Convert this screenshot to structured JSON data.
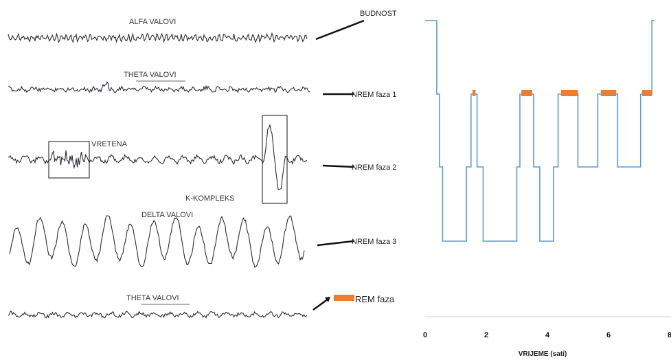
{
  "waves": [
    {
      "label": "ALFA VALOVI",
      "type": "alpha"
    },
    {
      "label": "THETA VALOVI",
      "type": "theta"
    },
    {
      "label": "VRETENA",
      "type": "spindle",
      "extra_label": "K-KOMPLEKS"
    },
    {
      "label": "DELTA VALOVI",
      "type": "delta"
    },
    {
      "label": "THETA VALOVI",
      "type": "theta"
    }
  ],
  "stages": [
    {
      "key": "wake",
      "label": "BUDNOST"
    },
    {
      "key": "n1",
      "label": "NREM faza 1"
    },
    {
      "key": "n2",
      "label": "NREM faza 2"
    },
    {
      "key": "n3",
      "label": "NREM faza 3"
    },
    {
      "key": "rem",
      "label": "REM faza"
    }
  ],
  "colors": {
    "hypnogram": "#5b9bd5",
    "rem": "#ed7d31",
    "wave": "#2a2a3a"
  },
  "chart_data": {
    "type": "line",
    "title": "",
    "xlabel": "VRIJEME (sati)",
    "ylabel": "",
    "xlim": [
      0,
      8
    ],
    "xticks": [
      0,
      2,
      4,
      6,
      8
    ],
    "y_categories": [
      "NREM faza 3",
      "NREM faza 2",
      "NREM faza 1",
      "BUDNOST"
    ],
    "series": [
      {
        "name": "",
        "x": [
          0,
          0.38,
          0.38,
          0.47,
          0.47,
          0.57,
          0.57,
          0.67,
          0.67,
          1.35,
          1.35,
          1.5,
          1.5,
          1.7,
          1.7,
          1.9,
          1.9,
          2.0,
          2.0,
          3.0,
          3.0,
          3.1,
          3.1,
          3.55,
          3.55,
          3.75,
          3.75,
          3.85,
          3.85,
          4.2,
          4.2,
          4.35,
          4.35,
          5.0,
          5.0,
          5.65,
          5.65,
          6.3,
          6.3,
          7.05,
          7.05,
          7.42,
          7.42,
          7.5
        ],
        "stage": [
          4,
          4,
          3,
          3,
          2,
          2,
          1,
          1,
          1,
          1,
          2,
          2,
          3,
          3,
          2,
          2,
          1,
          1,
          1,
          1,
          2,
          2,
          3,
          3,
          2,
          2,
          1,
          1,
          1,
          1,
          2,
          2,
          3,
          3,
          2,
          2,
          3,
          3,
          2,
          2,
          3,
          3,
          4,
          4
        ]
      }
    ],
    "rem_segments": [
      [
        1.55,
        1.65
      ],
      [
        3.15,
        3.5
      ],
      [
        4.45,
        5.0
      ],
      [
        5.75,
        6.25
      ],
      [
        7.1,
        7.42
      ]
    ]
  }
}
